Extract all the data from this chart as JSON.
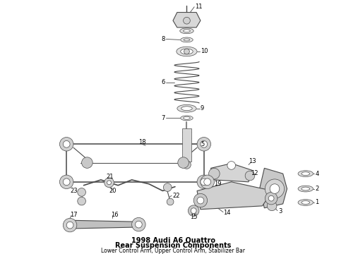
{
  "title": "1998 Audi A6 Quattro",
  "subtitle1": "Rear Suspension Components",
  "subtitle2": "Lower Control Arm, Upper Control Arm, Stabilizer Bar",
  "bg_color": "#ffffff",
  "line_color": "#4a4a4a",
  "text_color": "#000000",
  "fig_width": 4.9,
  "fig_height": 3.6,
  "dpi": 100
}
